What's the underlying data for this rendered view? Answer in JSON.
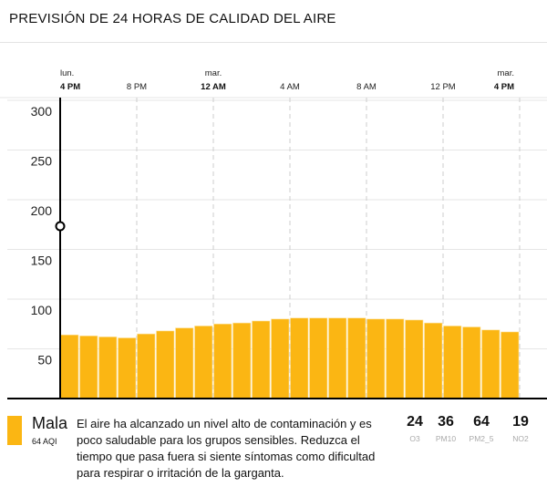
{
  "header": {
    "title": "PREVISIÓN DE 24 HORAS DE CALIDAD DEL AIRE"
  },
  "colors": {
    "bar": "#FBB613",
    "grid": "#e6e6e6",
    "axis": "#000000"
  },
  "chart_data": {
    "type": "bar",
    "title": "",
    "xlabel": "",
    "ylabel": "",
    "ylim": [
      0,
      300
    ],
    "yticks": [
      50,
      100,
      150,
      200,
      250,
      300
    ],
    "xticks": [
      {
        "day": "lun.",
        "time": "4 PM",
        "bold": true
      },
      {
        "day": "",
        "time": "8 PM",
        "bold": false
      },
      {
        "day": "mar.",
        "time": "12 AM",
        "bold": true
      },
      {
        "day": "",
        "time": "4 AM",
        "bold": false
      },
      {
        "day": "",
        "time": "8 AM",
        "bold": false
      },
      {
        "day": "",
        "time": "12 PM",
        "bold": false
      },
      {
        "day": "mar.",
        "time": "4 PM",
        "bold": true
      }
    ],
    "grid": true,
    "values": [
      64,
      63,
      62,
      61,
      65,
      68,
      71,
      73,
      75,
      76,
      78,
      80,
      81,
      81,
      81,
      81,
      80,
      80,
      79,
      76,
      73,
      72,
      69,
      67
    ]
  },
  "footer": {
    "category": "Mala",
    "aqi": "64 AQI",
    "description": "El aire ha alcanzado un nivel alto de contaminación y es poco saludable para los grupos sensibles. Reduzca el tiempo que pasa fuera si siente síntomas como dificultad para respirar o irritación de la garganta.",
    "pollutants": [
      {
        "value": "24",
        "name": "O3"
      },
      {
        "value": "36",
        "name": "PM10"
      },
      {
        "value": "64",
        "name": "PM2_5"
      },
      {
        "value": "19",
        "name": "NO2"
      }
    ]
  }
}
